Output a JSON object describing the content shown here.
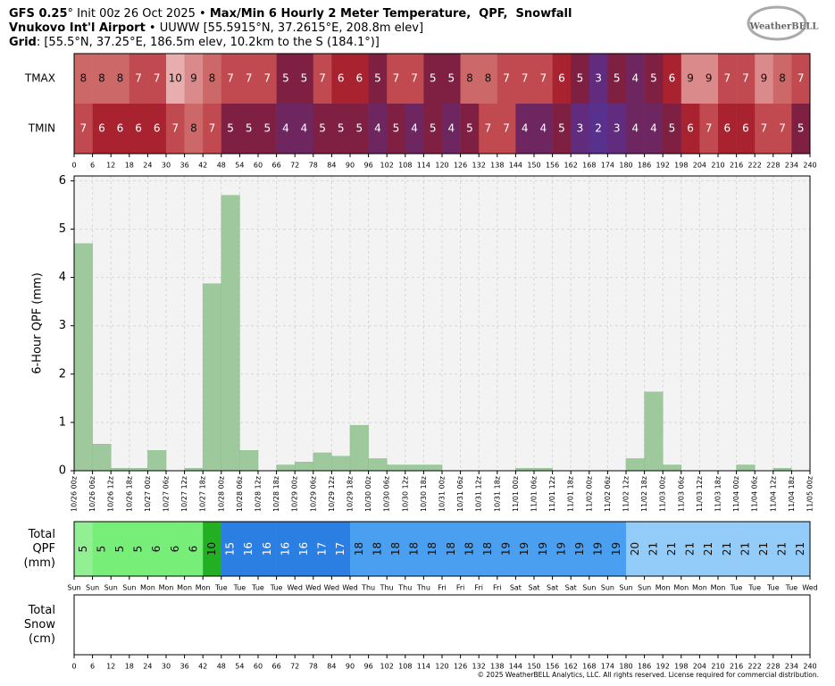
{
  "header": {
    "line1": [
      "GFS 0.25",
      "° Init 00z 26 Oct 2025 • ",
      "Max/Min 6 Hourly 2 Meter Temperature,  QPF,  Snowfall"
    ],
    "line2": [
      "Vnukovo Int'l Airport",
      " • UUWW [55.5915°N, 37.2615°E, 208.8m elev]"
    ],
    "line3": [
      "Grid",
      ": [55.5°N, 37.25°E, 186.5m elev, 10.2km to the S (184.1°)]"
    ],
    "logo": "WeatherBELL"
  },
  "footer": "© 2025 WeatherBELL Analytics, LLC. All rights reserved. License required for commercial distribution.",
  "chart_data": [
    {
      "type": "heatmap",
      "rows": [
        "TMAX",
        "TMIN"
      ],
      "values": [
        [
          8,
          8,
          8,
          7,
          7,
          10,
          9,
          8,
          7,
          7,
          7,
          5,
          5,
          7,
          6,
          6,
          5,
          7,
          7,
          5,
          5,
          8,
          8,
          7,
          7,
          7,
          6,
          5,
          3,
          5,
          4,
          5,
          6,
          9,
          9,
          7,
          7,
          9,
          8,
          7
        ],
        [
          7,
          6,
          6,
          6,
          6,
          7,
          8,
          7,
          5,
          5,
          5,
          4,
          4,
          5,
          5,
          5,
          4,
          5,
          4,
          5,
          4,
          5,
          7,
          7,
          4,
          4,
          5,
          3,
          2,
          3,
          4,
          4,
          5,
          6,
          7,
          6,
          6,
          7,
          7,
          5
        ]
      ],
      "colorscale": [
        {
          "value": 2,
          "color": "#57318c",
          "text_color": "#ffffff"
        },
        {
          "value": 3,
          "color": "#622c7e",
          "text_color": "#ffffff"
        },
        {
          "value": 4,
          "color": "#6e2660",
          "text_color": "#ffffff"
        },
        {
          "value": 5,
          "color": "#7f2043",
          "text_color": "#ffffff"
        },
        {
          "value": 6,
          "color": "#a9222f",
          "text_color": "#ffffff"
        },
        {
          "value": 7,
          "color": "#c04a50",
          "text_color": "#ffffff"
        },
        {
          "value": 8,
          "color": "#cd6868",
          "text_color": "#111111"
        },
        {
          "value": 9,
          "color": "#da8a8a",
          "text_color": "#111111"
        },
        {
          "value": 10,
          "color": "#e8adad",
          "text_color": "#111111"
        }
      ],
      "xlim": [
        0,
        240
      ],
      "xticks": [
        0,
        6,
        12,
        18,
        24,
        30,
        36,
        42,
        48,
        54,
        60,
        66,
        72,
        78,
        84,
        90,
        96,
        102,
        108,
        114,
        120,
        126,
        132,
        138,
        144,
        150,
        156,
        162,
        168,
        174,
        180,
        186,
        192,
        198,
        204,
        210,
        216,
        222,
        228,
        234,
        240
      ]
    },
    {
      "type": "histogram",
      "ylabel": "6-Hour QPF (mm)",
      "bins": [
        0,
        6,
        12,
        18,
        24,
        30,
        36,
        42,
        48,
        54,
        60,
        66,
        72,
        78,
        84,
        90,
        96,
        102,
        108,
        114,
        120,
        126,
        132,
        138,
        144,
        150,
        156,
        162,
        168,
        174,
        180,
        186,
        192,
        198,
        204,
        210,
        216,
        222,
        228,
        234,
        240
      ],
      "values": [
        4.7,
        0.55,
        0.05,
        0.05,
        0.42,
        0,
        0.05,
        3.87,
        5.7,
        0.42,
        0,
        0.12,
        0.18,
        0.37,
        0.3,
        0.94,
        0.25,
        0.12,
        0.12,
        0.12,
        0,
        0,
        0,
        0,
        0.05,
        0.05,
        0,
        0,
        0,
        0,
        0.25,
        1.63,
        0.12,
        0,
        0,
        0,
        0.12,
        0,
        0.05,
        0
      ],
      "color": "#9dc99d",
      "xlim": [
        0,
        240
      ],
      "ylim": [
        0,
        6.1
      ],
      "yticks": [
        0,
        1,
        2,
        3,
        4,
        5,
        6
      ],
      "grid": true,
      "xticks": [
        {
          "value": 0,
          "label": "10/26 00z"
        },
        {
          "value": 6,
          "label": "10/26 06z"
        },
        {
          "value": 12,
          "label": "10/26 12z"
        },
        {
          "value": 18,
          "label": "10/26 18z"
        },
        {
          "value": 24,
          "label": "10/27 00z"
        },
        {
          "value": 30,
          "label": "10/27 06z"
        },
        {
          "value": 36,
          "label": "10/27 12z"
        },
        {
          "value": 42,
          "label": "10/27 18z"
        },
        {
          "value": 48,
          "label": "10/28 00z"
        },
        {
          "value": 54,
          "label": "10/28 06z"
        },
        {
          "value": 60,
          "label": "10/28 12z"
        },
        {
          "value": 66,
          "label": "10/28 18z"
        },
        {
          "value": 72,
          "label": "10/29 00z"
        },
        {
          "value": 78,
          "label": "10/29 06z"
        },
        {
          "value": 84,
          "label": "10/29 12z"
        },
        {
          "value": 90,
          "label": "10/29 18z"
        },
        {
          "value": 96,
          "label": "10/30 00z"
        },
        {
          "value": 102,
          "label": "10/30 06z"
        },
        {
          "value": 108,
          "label": "10/30 12z"
        },
        {
          "value": 114,
          "label": "10/30 18z"
        },
        {
          "value": 120,
          "label": "10/31 00z"
        },
        {
          "value": 126,
          "label": "10/31 06z"
        },
        {
          "value": 132,
          "label": "10/31 12z"
        },
        {
          "value": 138,
          "label": "10/31 18z"
        },
        {
          "value": 144,
          "label": "11/01 00z"
        },
        {
          "value": 150,
          "label": "11/01 06z"
        },
        {
          "value": 156,
          "label": "11/01 12z"
        },
        {
          "value": 162,
          "label": "11/01 18z"
        },
        {
          "value": 168,
          "label": "11/02 00z"
        },
        {
          "value": 174,
          "label": "11/02 06z"
        },
        {
          "value": 180,
          "label": "11/02 12z"
        },
        {
          "value": 186,
          "label": "11/02 18z"
        },
        {
          "value": 192,
          "label": "11/03 00z"
        },
        {
          "value": 198,
          "label": "11/03 06z"
        },
        {
          "value": 204,
          "label": "11/03 12z"
        },
        {
          "value": 210,
          "label": "11/03 18z"
        },
        {
          "value": 216,
          "label": "11/04 00z"
        },
        {
          "value": 222,
          "label": "11/04 06z"
        },
        {
          "value": 228,
          "label": "11/04 12z"
        },
        {
          "value": 234,
          "label": "11/04 18z"
        },
        {
          "value": 240,
          "label": "11/05 00z"
        }
      ]
    },
    {
      "type": "strip",
      "label": [
        "Total",
        "QPF",
        "(mm)"
      ],
      "values": [
        5,
        5,
        5,
        5,
        6,
        6,
        6,
        10,
        15,
        16,
        16,
        16,
        16,
        17,
        17,
        18,
        18,
        18,
        18,
        18,
        18,
        18,
        18,
        19,
        19,
        19,
        19,
        19,
        19,
        19,
        20,
        21,
        21,
        21,
        21,
        21,
        21,
        21,
        21,
        21
      ],
      "colors": [
        "#93ef93",
        "#77ee77",
        "#77ee77",
        "#77ee77",
        "#77ee77",
        "#77ee77",
        "#77ee77",
        "#22b022",
        "#2b7fe3",
        "#2b7fe3",
        "#2b7fe3",
        "#2b7fe3",
        "#2b7fe3",
        "#2b7fe3",
        "#2b7fe3",
        "#4a9ff0",
        "#4a9ff0",
        "#4a9ff0",
        "#4a9ff0",
        "#4a9ff0",
        "#4a9ff0",
        "#4a9ff0",
        "#4a9ff0",
        "#4a9ff0",
        "#4a9ff0",
        "#4a9ff0",
        "#4a9ff0",
        "#4a9ff0",
        "#4a9ff0",
        "#4a9ff0",
        "#93ccf8",
        "#93ccf8",
        "#93ccf8",
        "#93ccf8",
        "#93ccf8",
        "#93ccf8",
        "#93ccf8",
        "#93ccf8",
        "#93ccf8",
        "#93ccf8"
      ],
      "text_colors": [
        "#111111",
        "#111111",
        "#111111",
        "#111111",
        "#111111",
        "#111111",
        "#111111",
        "#111111",
        "#ffffff",
        "#ffffff",
        "#ffffff",
        "#ffffff",
        "#ffffff",
        "#ffffff",
        "#ffffff",
        "#111111",
        "#111111",
        "#111111",
        "#111111",
        "#111111",
        "#111111",
        "#111111",
        "#111111",
        "#111111",
        "#111111",
        "#111111",
        "#111111",
        "#111111",
        "#111111",
        "#111111",
        "#111111",
        "#111111",
        "#111111",
        "#111111",
        "#111111",
        "#111111",
        "#111111",
        "#111111",
        "#111111",
        "#111111"
      ],
      "xlim": [
        0,
        240
      ],
      "xticks": [
        {
          "value": 0,
          "label": "Sun"
        },
        {
          "value": 6,
          "label": "Sun"
        },
        {
          "value": 12,
          "label": "Sun"
        },
        {
          "value": 18,
          "label": "Sun"
        },
        {
          "value": 24,
          "label": "Mon"
        },
        {
          "value": 30,
          "label": "Mon"
        },
        {
          "value": 36,
          "label": "Mon"
        },
        {
          "value": 42,
          "label": "Mon"
        },
        {
          "value": 48,
          "label": "Tue"
        },
        {
          "value": 54,
          "label": "Tue"
        },
        {
          "value": 60,
          "label": "Tue"
        },
        {
          "value": 66,
          "label": "Tue"
        },
        {
          "value": 72,
          "label": "Wed"
        },
        {
          "value": 78,
          "label": "Wed"
        },
        {
          "value": 84,
          "label": "Wed"
        },
        {
          "value": 90,
          "label": "Wed"
        },
        {
          "value": 96,
          "label": "Thu"
        },
        {
          "value": 102,
          "label": "Thu"
        },
        {
          "value": 108,
          "label": "Thu"
        },
        {
          "value": 114,
          "label": "Thu"
        },
        {
          "value": 120,
          "label": "Fri"
        },
        {
          "value": 126,
          "label": "Fri"
        },
        {
          "value": 132,
          "label": "Fri"
        },
        {
          "value": 138,
          "label": "Fri"
        },
        {
          "value": 144,
          "label": "Sat"
        },
        {
          "value": 150,
          "label": "Sat"
        },
        {
          "value": 156,
          "label": "Sat"
        },
        {
          "value": 162,
          "label": "Sat"
        },
        {
          "value": 168,
          "label": "Sun"
        },
        {
          "value": 174,
          "label": "Sun"
        },
        {
          "value": 180,
          "label": "Sun"
        },
        {
          "value": 186,
          "label": "Sun"
        },
        {
          "value": 192,
          "label": "Mon"
        },
        {
          "value": 198,
          "label": "Mon"
        },
        {
          "value": 204,
          "label": "Mon"
        },
        {
          "value": 210,
          "label": "Mon"
        },
        {
          "value": 216,
          "label": "Tue"
        },
        {
          "value": 222,
          "label": "Tue"
        },
        {
          "value": 228,
          "label": "Tue"
        },
        {
          "value": 234,
          "label": "Tue"
        },
        {
          "value": 240,
          "label": "Wed"
        }
      ]
    },
    {
      "type": "strip",
      "label": [
        "Total",
        "Snow",
        "(cm)"
      ],
      "values": [],
      "xlim": [
        0,
        240
      ],
      "xticks": [
        0,
        6,
        12,
        18,
        24,
        30,
        36,
        42,
        48,
        54,
        60,
        66,
        72,
        78,
        84,
        90,
        96,
        102,
        108,
        114,
        120,
        126,
        132,
        138,
        144,
        150,
        156,
        162,
        168,
        174,
        180,
        186,
        192,
        198,
        204,
        210,
        216,
        222,
        228,
        234,
        240
      ]
    }
  ]
}
